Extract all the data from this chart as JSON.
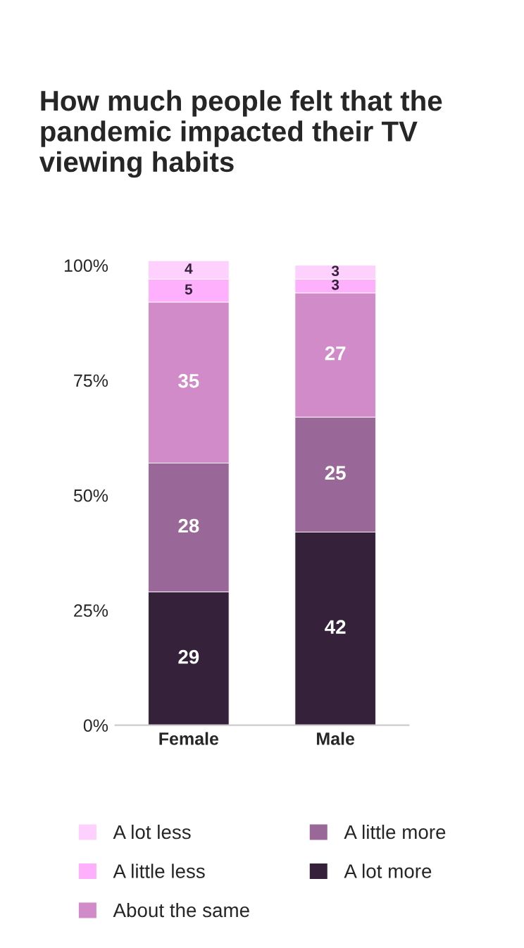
{
  "chart_data": {
    "type": "bar",
    "title": "How much people felt that the pandemic impacted their TV viewing habits",
    "categories": [
      "Female",
      "Male"
    ],
    "series": [
      {
        "name": "A lot more",
        "color": "#36213b",
        "values": [
          29,
          42
        ]
      },
      {
        "name": "A little more",
        "color": "#9a6898",
        "values": [
          28,
          25
        ]
      },
      {
        "name": "About the same",
        "color": "#d08bc8",
        "values": [
          35,
          27
        ]
      },
      {
        "name": "A little less",
        "color": "#feb0fd",
        "values": [
          5,
          3
        ]
      },
      {
        "name": "A lot less",
        "color": "#fed0fd",
        "values": [
          4,
          3
        ]
      }
    ],
    "stacked": true,
    "data_labels": true,
    "ylim": [
      0,
      101
    ],
    "yticks": [
      {
        "value": 0,
        "label": "0%"
      },
      {
        "value": 25,
        "label": "25%"
      },
      {
        "value": 50,
        "label": "50%"
      },
      {
        "value": 75,
        "label": "75%"
      },
      {
        "value": 100,
        "label": "100%"
      }
    ],
    "grid": false,
    "legend": "bottom"
  }
}
